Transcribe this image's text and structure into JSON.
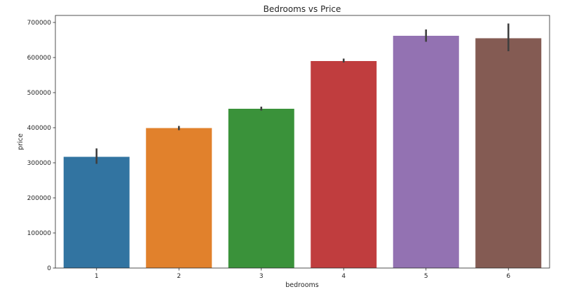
{
  "chart_data": {
    "type": "bar",
    "title": "Bedrooms vs Price",
    "xlabel": "bedrooms",
    "ylabel": "price",
    "categories": [
      "1",
      "2",
      "3",
      "4",
      "5",
      "6"
    ],
    "values": [
      317000,
      399000,
      454000,
      590000,
      662000,
      655000
    ],
    "error_low": [
      297000,
      393000,
      449000,
      586000,
      645000,
      618000
    ],
    "error_high": [
      341000,
      405000,
      460000,
      597000,
      680000,
      697000
    ],
    "colors": [
      "#3274a1",
      "#e1812c",
      "#3a923a",
      "#c03d3e",
      "#9372b2",
      "#845b53"
    ],
    "error_color": "#3f3f3f",
    "ylim": [
      0,
      720000
    ],
    "yticks": [
      0,
      100000,
      200000,
      300000,
      400000,
      500000,
      600000,
      700000
    ],
    "ytick_labels": [
      "0",
      "100000",
      "200000",
      "300000",
      "400000",
      "500000",
      "600000",
      "700000"
    ],
    "grid": false,
    "legend": "none"
  }
}
